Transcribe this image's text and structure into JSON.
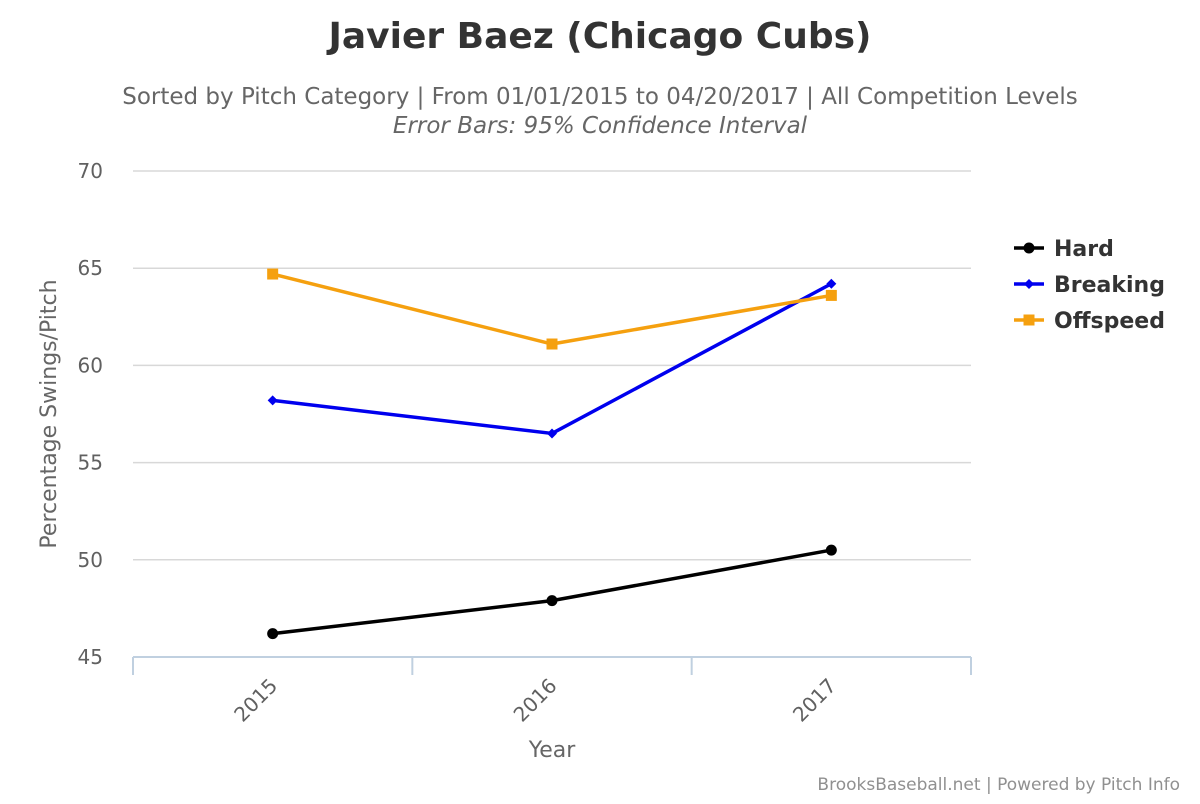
{
  "chart_data": {
    "type": "line",
    "title": "Javier Baez (Chicago Cubs)",
    "subtitle": "Sorted by Pitch Category | From 01/01/2015 to 04/20/2017 | All Competition Levels",
    "subtitle2": "Error Bars: 95% Confidence Interval",
    "xlabel": "Year",
    "ylabel": "Percentage Swings/Pitch",
    "categories": [
      "2015",
      "2016",
      "2017"
    ],
    "ylim": [
      45,
      70
    ],
    "yticks": [
      45,
      50,
      55,
      60,
      65,
      70
    ],
    "grid": true,
    "legend_position": "right",
    "series": [
      {
        "name": "Hard",
        "values": [
          46.2,
          47.9,
          50.5
        ],
        "color": "#000000",
        "marker": "circle"
      },
      {
        "name": "Breaking",
        "values": [
          58.2,
          56.5,
          64.2
        ],
        "color": "#0000ee",
        "marker": "diamond"
      },
      {
        "name": "Offspeed",
        "values": [
          64.7,
          61.1,
          63.6
        ],
        "color": "#f5a00f",
        "marker": "square"
      }
    ],
    "credits": "BrooksBaseball.net | Powered by Pitch Info"
  }
}
